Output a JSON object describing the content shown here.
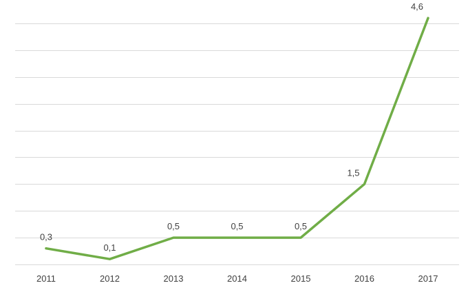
{
  "chart_data": {
    "type": "line",
    "categories": [
      "2011",
      "2012",
      "2013",
      "2014",
      "2015",
      "2016",
      "2017"
    ],
    "series": [
      {
        "values": [
          0.3,
          0.1,
          0.5,
          0.5,
          0.5,
          1.5,
          4.6
        ],
        "data_labels": [
          "0,3",
          "0,1",
          "0,5",
          "0,5",
          "0,5",
          "1,5",
          "4,6"
        ],
        "color": "#70ad47"
      }
    ],
    "title": "",
    "xlabel": "",
    "ylabel": "",
    "ylim": [
      0,
      4.5
    ],
    "y_grid_step": 0.5,
    "y_tick_labels_visible": false,
    "grid": true,
    "legend": "none"
  }
}
